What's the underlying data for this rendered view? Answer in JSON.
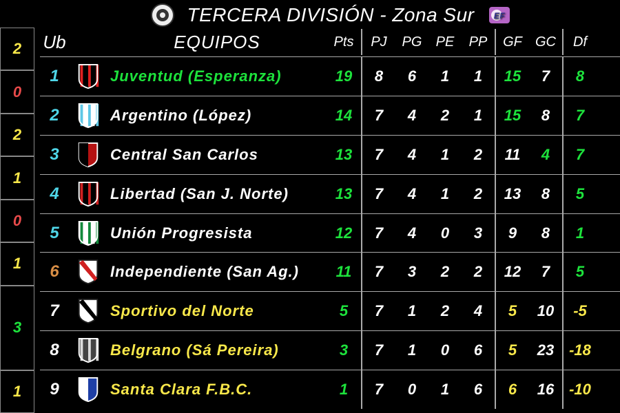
{
  "title": "TERCERA DIVISIÓN - Zona Sur",
  "leftSliver": [
    {
      "value": "2",
      "color": "c-yellow",
      "double": false
    },
    {
      "value": "0",
      "color": "c-red",
      "double": false
    },
    {
      "value": "2",
      "color": "c-yellow",
      "double": false
    },
    {
      "value": "1",
      "color": "c-yellow",
      "double": false
    },
    {
      "value": "0",
      "color": "c-red",
      "double": false
    },
    {
      "value": "1",
      "color": "c-yellow",
      "double": false
    },
    {
      "value": "3",
      "color": "c-green",
      "double": true
    },
    {
      "value": "1",
      "color": "c-yellow",
      "double": false
    }
  ],
  "columns": {
    "ub": "Ub",
    "team": "EQUIPOS",
    "pts": "Pts",
    "pj": "PJ",
    "pg": "PG",
    "pe": "PE",
    "pp": "PP",
    "gf": "GF",
    "gc": "GC",
    "df": "Df"
  },
  "rows": [
    {
      "pos": "1",
      "posColor": "c-cyan",
      "team": "Juventud (Esperanza)",
      "teamColor": "c-green",
      "pts": "19",
      "ptsColor": "c-green",
      "pj": "8",
      "pg": "6",
      "pe": "1",
      "pp": "1",
      "gf": "15",
      "gfColor": "c-green",
      "gc": "7",
      "gcColor": "c-white",
      "df": "8",
      "dfColor": "c-green",
      "badge": {
        "type": "shield",
        "c1": "#E02020",
        "c2": "#000000",
        "stripes": true
      }
    },
    {
      "pos": "2",
      "posColor": "c-cyan",
      "team": "Argentino (López)",
      "teamColor": "c-white",
      "pts": "14",
      "ptsColor": "c-green",
      "pj": "7",
      "pg": "4",
      "pe": "2",
      "pp": "1",
      "gf": "15",
      "gfColor": "c-green",
      "gc": "8",
      "gcColor": "c-white",
      "df": "7",
      "dfColor": "c-green",
      "badge": {
        "type": "shield",
        "c1": "#5EC7E6",
        "c2": "#FFFFFF",
        "stripes": true
      }
    },
    {
      "pos": "3",
      "posColor": "c-cyan",
      "team": "Central San Carlos",
      "teamColor": "c-white",
      "pts": "13",
      "ptsColor": "c-green",
      "pj": "7",
      "pg": "4",
      "pe": "1",
      "pp": "2",
      "gf": "11",
      "gfColor": "c-white",
      "gc": "4",
      "gcColor": "c-green",
      "df": "7",
      "dfColor": "c-green",
      "badge": {
        "type": "shield",
        "c1": "#B51212",
        "c2": "#000000",
        "stripes": false
      }
    },
    {
      "pos": "4",
      "posColor": "c-cyan",
      "team": "Libertad (San J. Norte)",
      "teamColor": "c-white",
      "pts": "13",
      "ptsColor": "c-green",
      "pj": "7",
      "pg": "4",
      "pe": "1",
      "pp": "2",
      "gf": "13",
      "gfColor": "c-white",
      "gc": "8",
      "gcColor": "c-white",
      "df": "5",
      "dfColor": "c-green",
      "badge": {
        "type": "shield",
        "c1": "#D02020",
        "c2": "#000000",
        "stripes": true
      }
    },
    {
      "pos": "5",
      "posColor": "c-cyan",
      "team": "Unión Progresista",
      "teamColor": "c-white",
      "pts": "12",
      "ptsColor": "c-green",
      "pj": "7",
      "pg": "4",
      "pe": "0",
      "pp": "3",
      "gf": "9",
      "gfColor": "c-white",
      "gc": "8",
      "gcColor": "c-white",
      "df": "1",
      "dfColor": "c-green",
      "badge": {
        "type": "shield",
        "c1": "#128A3C",
        "c2": "#FFFFFF",
        "stripes": true
      }
    },
    {
      "pos": "6",
      "posColor": "c-orange",
      "team": "Independiente (San Ag.)",
      "teamColor": "c-white",
      "pts": "11",
      "ptsColor": "c-green",
      "pj": "7",
      "pg": "3",
      "pe": "2",
      "pp": "2",
      "gf": "12",
      "gfColor": "c-white",
      "gc": "7",
      "gcColor": "c-white",
      "df": "5",
      "dfColor": "c-green",
      "badge": {
        "type": "shield",
        "c1": "#FFFFFF",
        "c2": "#D02020",
        "stripes": false,
        "sash": true
      }
    },
    {
      "pos": "7",
      "posColor": "c-white",
      "team": "Sportivo del Norte",
      "teamColor": "c-yellow",
      "pts": "5",
      "ptsColor": "c-green",
      "pj": "7",
      "pg": "1",
      "pe": "2",
      "pp": "4",
      "gf": "5",
      "gfColor": "c-yellow",
      "gc": "10",
      "gcColor": "c-white",
      "df": "-5",
      "dfColor": "c-yellow",
      "badge": {
        "type": "shield",
        "c1": "#FFFFFF",
        "c2": "#000000",
        "stripes": false,
        "sash": true
      }
    },
    {
      "pos": "8",
      "posColor": "c-white",
      "team": "Belgrano (Sá Pereira)",
      "teamColor": "c-yellow",
      "pts": "3",
      "ptsColor": "c-green",
      "pj": "7",
      "pg": "1",
      "pe": "0",
      "pp": "6",
      "gf": "5",
      "gfColor": "c-yellow",
      "gc": "23",
      "gcColor": "c-white",
      "df": "-18",
      "dfColor": "c-yellow",
      "badge": {
        "type": "shield",
        "c1": "#DCDCDC",
        "c2": "#444444",
        "stripes": true
      }
    },
    {
      "pos": "9",
      "posColor": "c-white",
      "team": "Santa Clara F.B.C.",
      "teamColor": "c-yellow",
      "pts": "1",
      "ptsColor": "c-green",
      "pj": "7",
      "pg": "0",
      "pe": "1",
      "pp": "6",
      "gf": "6",
      "gfColor": "c-yellow",
      "gc": "16",
      "gcColor": "c-white",
      "df": "-10",
      "dfColor": "c-yellow",
      "badge": {
        "type": "shield",
        "c1": "#1E3FA6",
        "c2": "#FFFFFF",
        "stripes": false
      }
    }
  ]
}
